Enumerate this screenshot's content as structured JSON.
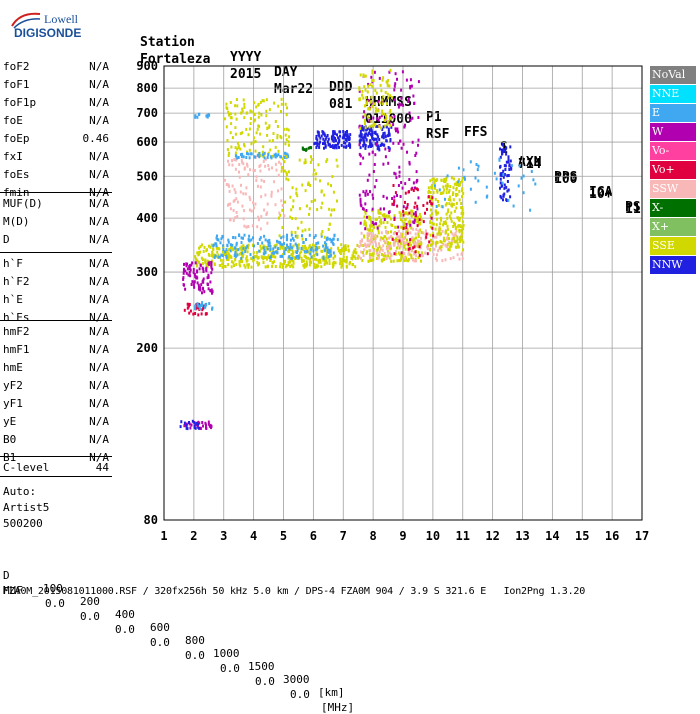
{
  "logo": {
    "line1": "Lowell",
    "line2": "DIGISONDE"
  },
  "header": {
    "labels": [
      "Station",
      "YYYY",
      "DAY",
      "DDD",
      "HHMMSS",
      "P1",
      "FFS",
      "S",
      "AXN",
      "PPS",
      "IGA",
      "PS"
    ],
    "values": [
      "Fortaleza",
      "2015",
      "Mar22",
      "081",
      "011000",
      "RSF",
      "1",
      "714",
      "100",
      "10+",
      "11"
    ]
  },
  "params": {
    "group1": [
      {
        "name": "foF2",
        "value": "N/A"
      },
      {
        "name": "foF1",
        "value": "N/A"
      },
      {
        "name": "foF1p",
        "value": "N/A"
      },
      {
        "name": "foE",
        "value": "N/A"
      },
      {
        "name": "foEp",
        "value": "0.46"
      },
      {
        "name": "fxI",
        "value": "N/A"
      },
      {
        "name": "foEs",
        "value": "N/A"
      },
      {
        "name": "fmin",
        "value": "N/A"
      }
    ],
    "group2": [
      {
        "name": "MUF(D)",
        "value": "N/A"
      },
      {
        "name": "M(D)",
        "value": "N/A"
      },
      {
        "name": "D",
        "value": "N/A"
      }
    ],
    "group3": [
      {
        "name": "h`F",
        "value": "N/A"
      },
      {
        "name": "h`F2",
        "value": "N/A"
      },
      {
        "name": "h`E",
        "value": "N/A"
      },
      {
        "name": "h`Es",
        "value": "N/A"
      }
    ],
    "group4": [
      {
        "name": "hmF2",
        "value": "N/A"
      },
      {
        "name": "hmF1",
        "value": "N/A"
      },
      {
        "name": "hmE",
        "value": "N/A"
      },
      {
        "name": "yF2",
        "value": "N/A"
      },
      {
        "name": "yF1",
        "value": "N/A"
      },
      {
        "name": "yE",
        "value": "N/A"
      },
      {
        "name": "B0",
        "value": "N/A"
      },
      {
        "name": "B1",
        "value": "N/A"
      }
    ],
    "clevel": {
      "name": "C-level",
      "value": "44"
    },
    "auto": [
      "Auto:",
      "Artist5",
      "500200"
    ]
  },
  "legend": [
    {
      "label": "NoVal",
      "color": "#808080"
    },
    {
      "label": "NNE",
      "color": "#00e0ff"
    },
    {
      "label": "E",
      "color": "#40a8f0"
    },
    {
      "label": "W",
      "color": "#b000b0"
    },
    {
      "label": "Vo-",
      "color": "#ff40a0"
    },
    {
      "label": "Vo+",
      "color": "#e00040"
    },
    {
      "label": "SSW",
      "color": "#f8b8b8"
    },
    {
      "label": "X-",
      "color": "#007000"
    },
    {
      "label": "X+",
      "color": "#80c060"
    },
    {
      "label": "SSE",
      "color": "#d0d800"
    },
    {
      "label": "NNW",
      "color": "#2020e0"
    }
  ],
  "footer": {
    "d_label": "D",
    "d_values": [
      "100",
      "200",
      "400",
      "600",
      "800",
      "1000",
      "1500",
      "3000"
    ],
    "d_unit": "[km]",
    "muf_label": "MUF",
    "muf_values": [
      "0.0",
      "0.0",
      "0.0",
      "0.0",
      "0.0",
      "0.0",
      "0.0",
      "0.0"
    ],
    "muf_unit": "[MHz]",
    "file_line": "FZA0M_2015081011000.RSF / 320fx256h 50 kHz 5.0 km / DPS-4 FZA0M 904 / 3.9 S 321.6 E   Ion2Png 1.3.20"
  },
  "chart_data": {
    "type": "scatter",
    "x_ticks": [
      "1",
      "2",
      "3",
      "4",
      "5",
      "6",
      "7",
      "8",
      "9",
      "10",
      "11",
      "12",
      "13",
      "14",
      "15",
      "16",
      "17"
    ],
    "y_ticks": [
      "80",
      "200",
      "300",
      "400",
      "500",
      "600",
      "700",
      "800",
      "900"
    ],
    "xlim": [
      1,
      17
    ],
    "y_scale": "log",
    "ylim": [
      80,
      900
    ],
    "grid": true,
    "regions": [
      {
        "color": "#d0d800",
        "x0": 2.0,
        "x1": 7.5,
        "y0": 310,
        "y1": 350,
        "n": 420
      },
      {
        "color": "#40a8f0",
        "x0": 2.6,
        "x1": 6.8,
        "y0": 325,
        "y1": 370,
        "n": 200
      },
      {
        "color": "#d0d800",
        "x0": 7.6,
        "x1": 9.6,
        "y0": 320,
        "y1": 420,
        "n": 260
      },
      {
        "color": "#f8b8b8",
        "x0": 7.5,
        "x1": 11.0,
        "y0": 320,
        "y1": 380,
        "n": 180
      },
      {
        "color": "#d0d800",
        "x0": 9.8,
        "x1": 11.0,
        "y0": 340,
        "y1": 500,
        "n": 220
      },
      {
        "color": "#b000b0",
        "x0": 1.6,
        "x1": 2.6,
        "y0": 270,
        "y1": 320,
        "n": 90
      },
      {
        "color": "#e00040",
        "x0": 1.6,
        "x1": 2.4,
        "y0": 240,
        "y1": 255,
        "n": 30
      },
      {
        "color": "#40a8f0",
        "x0": 2.0,
        "x1": 2.6,
        "y0": 248,
        "y1": 258,
        "n": 20
      },
      {
        "color": "#d0d800",
        "x0": 3.0,
        "x1": 5.2,
        "y0": 560,
        "y1": 760,
        "n": 130
      },
      {
        "color": "#f8b8b8",
        "x0": 3.0,
        "x1": 5.0,
        "y0": 380,
        "y1": 560,
        "n": 110
      },
      {
        "color": "#40a8f0",
        "x0": 3.2,
        "x1": 5.2,
        "y0": 555,
        "y1": 570,
        "n": 40
      },
      {
        "color": "#2020e0",
        "x0": 6.0,
        "x1": 7.2,
        "y0": 585,
        "y1": 640,
        "n": 110
      },
      {
        "color": "#2020e0",
        "x0": 7.5,
        "x1": 8.6,
        "y0": 580,
        "y1": 660,
        "n": 110
      },
      {
        "color": "#b000b0",
        "x0": 7.5,
        "x1": 9.5,
        "y0": 380,
        "y1": 880,
        "n": 170
      },
      {
        "color": "#d0d800",
        "x0": 7.5,
        "x1": 8.6,
        "y0": 650,
        "y1": 890,
        "n": 90
      },
      {
        "color": "#2020e0",
        "x0": 12.2,
        "x1": 12.6,
        "y0": 440,
        "y1": 600,
        "n": 60
      },
      {
        "color": "#40a8f0",
        "x0": 10.0,
        "x1": 13.4,
        "y0": 420,
        "y1": 560,
        "n": 40
      },
      {
        "color": "#b000b0",
        "x0": 1.6,
        "x1": 2.6,
        "y0": 131,
        "y1": 136,
        "n": 25
      },
      {
        "color": "#2020e0",
        "x0": 1.5,
        "x1": 2.2,
        "y0": 131,
        "y1": 137,
        "n": 15
      },
      {
        "color": "#40a8f0",
        "x0": 2.0,
        "x1": 2.5,
        "y0": 690,
        "y1": 705,
        "n": 12
      },
      {
        "color": "#007000",
        "x0": 5.6,
        "x1": 5.9,
        "y0": 578,
        "y1": 588,
        "n": 8
      },
      {
        "color": "#d0d800",
        "x0": 4.8,
        "x1": 6.8,
        "y0": 360,
        "y1": 560,
        "n": 90
      },
      {
        "color": "#e00040",
        "x0": 8.6,
        "x1": 10.0,
        "y0": 330,
        "y1": 480,
        "n": 60
      }
    ]
  }
}
